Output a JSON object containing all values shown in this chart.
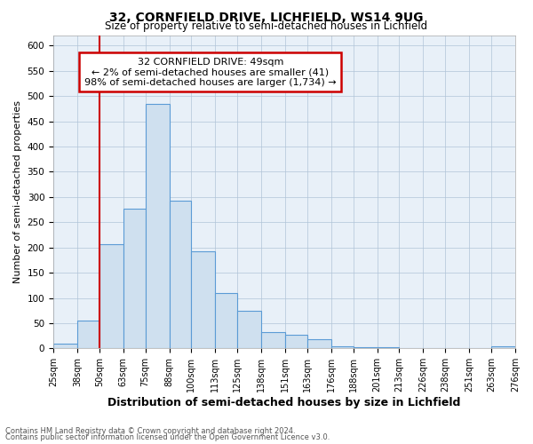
{
  "title": "32, CORNFIELD DRIVE, LICHFIELD, WS14 9UG",
  "subtitle": "Size of property relative to semi-detached houses in Lichfield",
  "xlabel": "Distribution of semi-detached houses by size in Lichfield",
  "ylabel": "Number of semi-detached properties",
  "footer1": "Contains HM Land Registry data © Crown copyright and database right 2024.",
  "footer2": "Contains public sector information licensed under the Open Government Licence v3.0.",
  "annotation_line1": "32 CORNFIELD DRIVE: 49sqm",
  "annotation_line2": "← 2% of semi-detached houses are smaller (41)",
  "annotation_line3": "98% of semi-detached houses are larger (1,734) →",
  "property_bin_edge": 50,
  "bins": [
    25,
    38,
    50,
    63,
    75,
    88,
    100,
    113,
    125,
    138,
    151,
    163,
    176,
    188,
    201,
    213,
    226,
    238,
    251,
    263,
    276
  ],
  "bar_values": [
    10,
    55,
    207,
    276,
    485,
    293,
    192,
    110,
    75,
    32,
    27,
    18,
    5,
    3,
    2,
    1,
    1,
    0,
    0,
    5
  ],
  "bar_color": "#cfe0ef",
  "bar_edge_color": "#5b9bd5",
  "marker_color": "#cc0000",
  "ylim": [
    0,
    620
  ],
  "yticks": [
    0,
    50,
    100,
    150,
    200,
    250,
    300,
    350,
    400,
    450,
    500,
    550,
    600
  ],
  "annotation_box_color": "#cc0000",
  "plot_bg_color": "#e8f0f8",
  "fig_bg_color": "#ffffff"
}
